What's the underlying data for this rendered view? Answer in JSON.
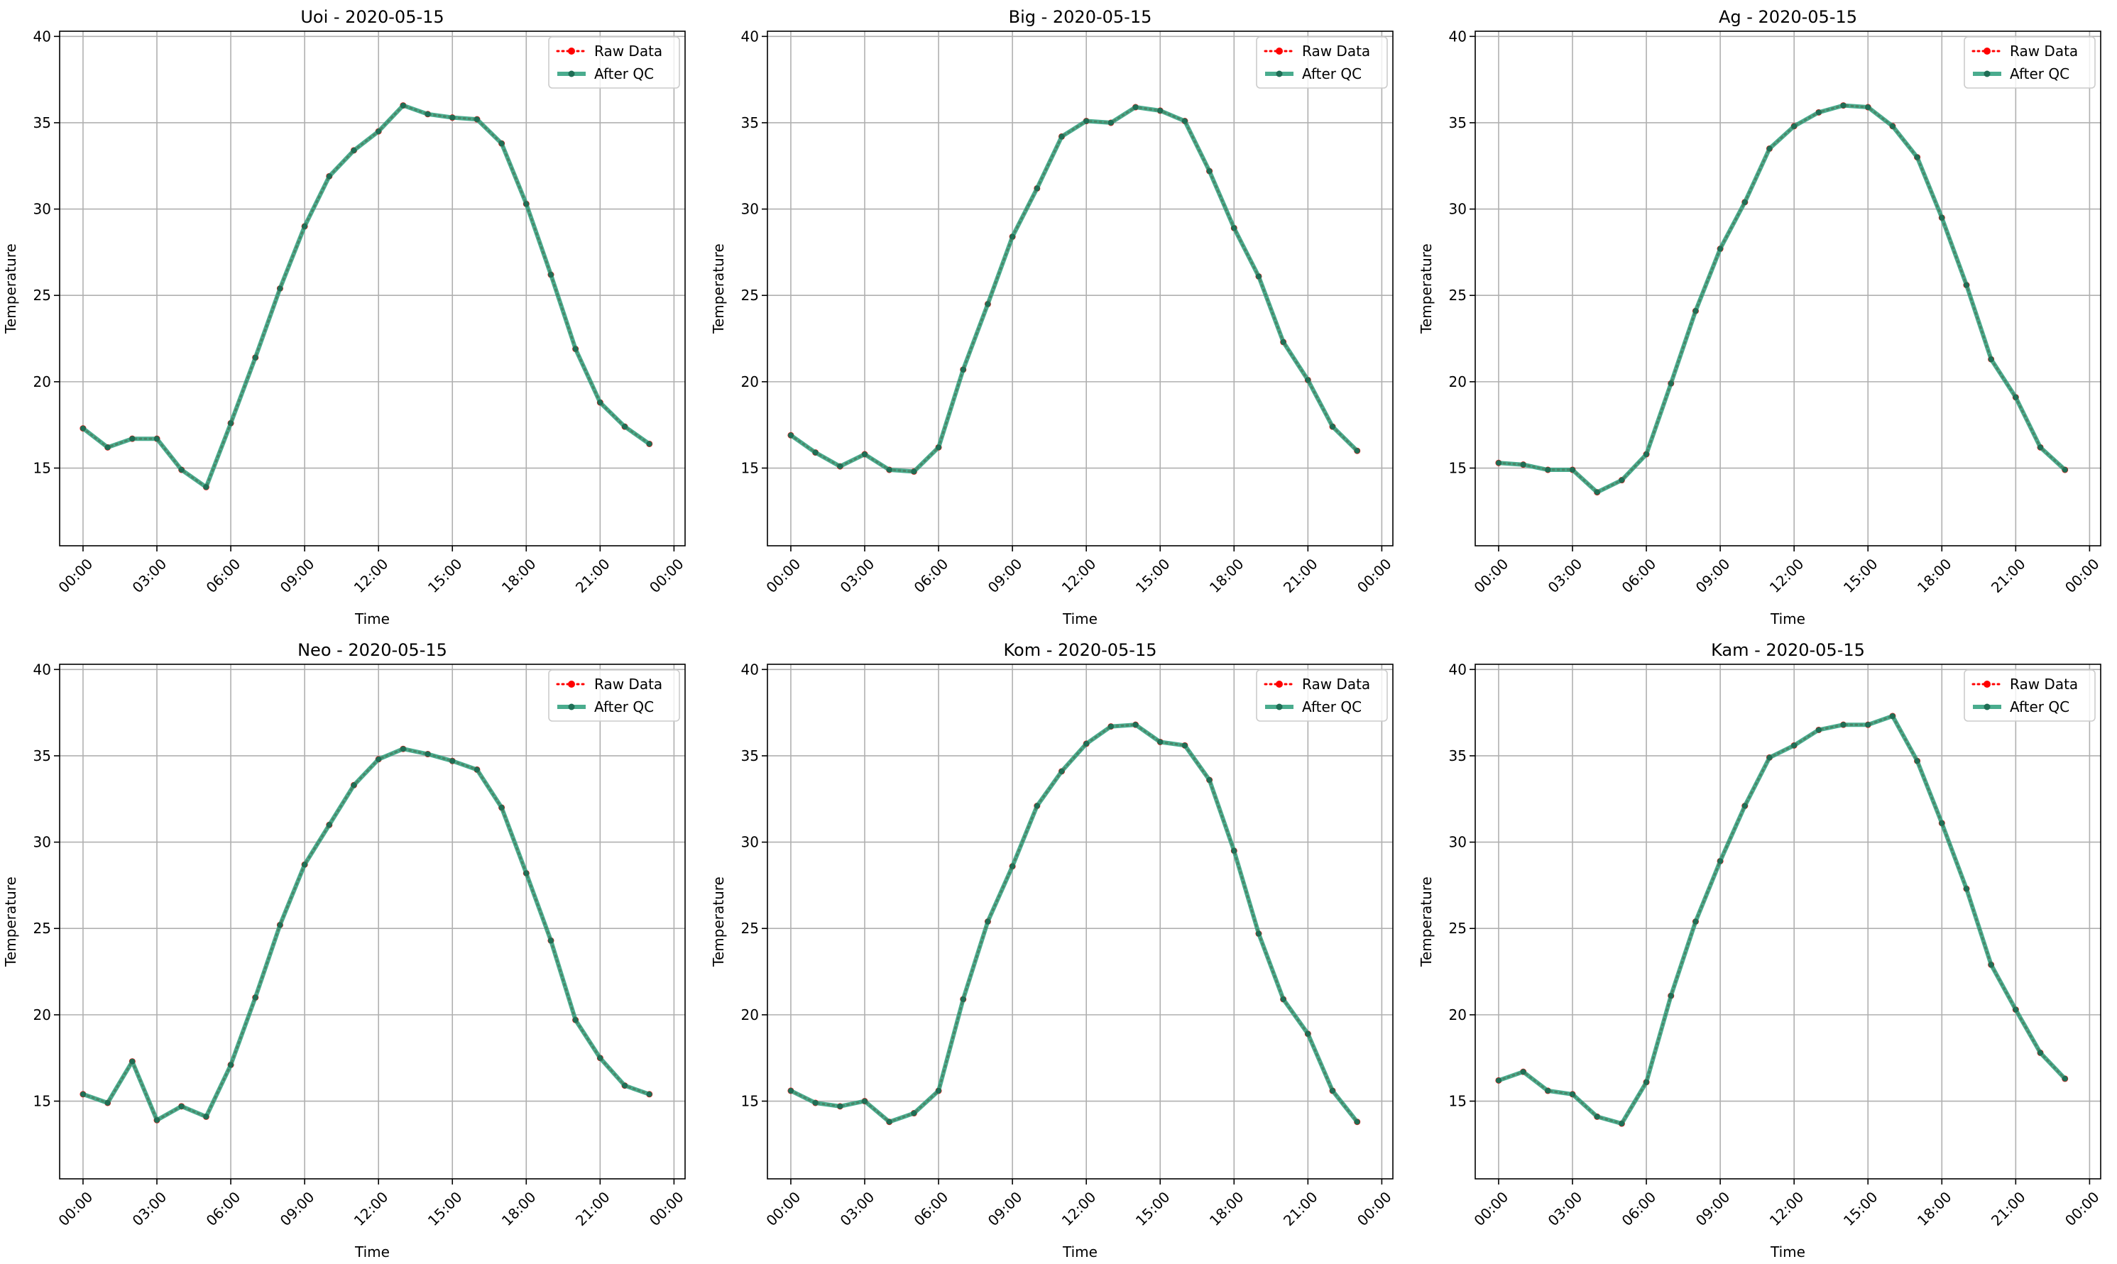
{
  "figure": {
    "background": "#ffffff"
  },
  "style": {
    "raw_color": "#ff0000",
    "qc_color": "#2a9d7a",
    "qc_marker_color": "#1f6e55"
  },
  "chart_data": [
    {
      "type": "line",
      "title": "Uoi - 2020-05-15",
      "xlabel": "Time",
      "ylabel": "Temperature",
      "x": [
        "00:00",
        "01:00",
        "02:00",
        "03:00",
        "04:00",
        "05:00",
        "06:00",
        "07:00",
        "08:00",
        "09:00",
        "10:00",
        "11:00",
        "12:00",
        "13:00",
        "14:00",
        "15:00",
        "16:00",
        "17:00",
        "18:00",
        "19:00",
        "20:00",
        "21:00",
        "22:00",
        "23:00"
      ],
      "xticks": [
        "00:00",
        "03:00",
        "06:00",
        "09:00",
        "12:00",
        "15:00",
        "18:00",
        "21:00",
        "00:00"
      ],
      "yticks": [
        15,
        20,
        25,
        30,
        35,
        40
      ],
      "ylim": [
        10.5,
        40.3
      ],
      "grid": true,
      "legend_position": "top-right",
      "series": [
        {
          "name": "Raw Data",
          "style": "dotted",
          "values": [
            17.3,
            16.2,
            16.7,
            16.7,
            14.9,
            13.9,
            17.6,
            21.4,
            25.4,
            29.0,
            31.9,
            33.4,
            34.5,
            36.0,
            35.5,
            35.3,
            35.2,
            33.8,
            30.3,
            26.2,
            21.9,
            18.8,
            17.4,
            16.4
          ]
        },
        {
          "name": "After QC",
          "style": "solid",
          "values": [
            17.3,
            16.2,
            16.7,
            16.7,
            14.9,
            13.9,
            17.6,
            21.4,
            25.4,
            29.0,
            31.9,
            33.4,
            34.5,
            36.0,
            35.5,
            35.3,
            35.2,
            33.8,
            30.3,
            26.2,
            21.9,
            18.8,
            17.4,
            16.4
          ]
        }
      ]
    },
    {
      "type": "line",
      "title": "Big - 2020-05-15",
      "xlabel": "Time",
      "ylabel": "Temperature",
      "x": [
        "00:00",
        "01:00",
        "02:00",
        "03:00",
        "04:00",
        "05:00",
        "06:00",
        "07:00",
        "08:00",
        "09:00",
        "10:00",
        "11:00",
        "12:00",
        "13:00",
        "14:00",
        "15:00",
        "16:00",
        "17:00",
        "18:00",
        "19:00",
        "20:00",
        "21:00",
        "22:00",
        "23:00"
      ],
      "xticks": [
        "00:00",
        "03:00",
        "06:00",
        "09:00",
        "12:00",
        "15:00",
        "18:00",
        "21:00",
        "00:00"
      ],
      "yticks": [
        15,
        20,
        25,
        30,
        35,
        40
      ],
      "ylim": [
        10.5,
        40.3
      ],
      "grid": true,
      "legend_position": "top-right",
      "series": [
        {
          "name": "Raw Data",
          "style": "dotted",
          "values": [
            16.9,
            15.9,
            15.1,
            15.8,
            14.9,
            14.8,
            16.2,
            20.7,
            24.5,
            28.4,
            31.2,
            34.2,
            35.1,
            35.0,
            35.9,
            35.7,
            35.1,
            32.2,
            28.9,
            26.1,
            22.3,
            20.1,
            17.4,
            16.0
          ]
        },
        {
          "name": "After QC",
          "style": "solid",
          "values": [
            16.9,
            15.9,
            15.1,
            15.8,
            14.9,
            14.8,
            16.2,
            20.7,
            24.5,
            28.4,
            31.2,
            34.2,
            35.1,
            35.0,
            35.9,
            35.7,
            35.1,
            32.2,
            28.9,
            26.1,
            22.3,
            20.1,
            17.4,
            16.0
          ]
        }
      ]
    },
    {
      "type": "line",
      "title": "Ag - 2020-05-15",
      "xlabel": "Time",
      "ylabel": "Temperature",
      "x": [
        "00:00",
        "01:00",
        "02:00",
        "03:00",
        "04:00",
        "05:00",
        "06:00",
        "07:00",
        "08:00",
        "09:00",
        "10:00",
        "11:00",
        "12:00",
        "13:00",
        "14:00",
        "15:00",
        "16:00",
        "17:00",
        "18:00",
        "19:00",
        "20:00",
        "21:00",
        "22:00",
        "23:00"
      ],
      "xticks": [
        "00:00",
        "03:00",
        "06:00",
        "09:00",
        "12:00",
        "15:00",
        "18:00",
        "21:00",
        "00:00"
      ],
      "yticks": [
        15,
        20,
        25,
        30,
        35,
        40
      ],
      "ylim": [
        10.5,
        40.3
      ],
      "grid": true,
      "legend_position": "top-right",
      "series": [
        {
          "name": "Raw Data",
          "style": "dotted",
          "values": [
            15.3,
            15.2,
            14.9,
            14.9,
            13.6,
            14.3,
            15.8,
            19.9,
            24.1,
            27.7,
            30.4,
            33.5,
            34.8,
            35.6,
            36.0,
            35.9,
            34.8,
            33.0,
            29.5,
            25.6,
            21.3,
            19.1,
            16.2,
            14.9
          ]
        },
        {
          "name": "After QC",
          "style": "solid",
          "values": [
            15.3,
            15.2,
            14.9,
            14.9,
            13.6,
            14.3,
            15.8,
            19.9,
            24.1,
            27.7,
            30.4,
            33.5,
            34.8,
            35.6,
            36.0,
            35.9,
            34.8,
            33.0,
            29.5,
            25.6,
            21.3,
            19.1,
            16.2,
            14.9
          ]
        }
      ]
    },
    {
      "type": "line",
      "title": "Neo - 2020-05-15",
      "xlabel": "Time",
      "ylabel": "Temperature",
      "x": [
        "00:00",
        "01:00",
        "02:00",
        "03:00",
        "04:00",
        "05:00",
        "06:00",
        "07:00",
        "08:00",
        "09:00",
        "10:00",
        "11:00",
        "12:00",
        "13:00",
        "14:00",
        "15:00",
        "16:00",
        "17:00",
        "18:00",
        "19:00",
        "20:00",
        "21:00",
        "22:00",
        "23:00"
      ],
      "xticks": [
        "00:00",
        "03:00",
        "06:00",
        "09:00",
        "12:00",
        "15:00",
        "18:00",
        "21:00",
        "00:00"
      ],
      "yticks": [
        15,
        20,
        25,
        30,
        35,
        40
      ],
      "ylim": [
        10.5,
        40.3
      ],
      "grid": true,
      "legend_position": "top-right",
      "series": [
        {
          "name": "Raw Data",
          "style": "dotted",
          "values": [
            15.4,
            14.9,
            17.3,
            13.9,
            14.7,
            14.1,
            17.1,
            21.0,
            25.2,
            28.7,
            31.0,
            33.3,
            34.8,
            35.4,
            35.1,
            34.7,
            34.2,
            32.0,
            28.2,
            24.3,
            19.7,
            17.5,
            15.9,
            15.4
          ]
        },
        {
          "name": "After QC",
          "style": "solid",
          "values": [
            15.4,
            14.9,
            17.3,
            13.9,
            14.7,
            14.1,
            17.1,
            21.0,
            25.2,
            28.7,
            31.0,
            33.3,
            34.8,
            35.4,
            35.1,
            34.7,
            34.2,
            32.0,
            28.2,
            24.3,
            19.7,
            17.5,
            15.9,
            15.4
          ]
        }
      ]
    },
    {
      "type": "line",
      "title": "Kom - 2020-05-15",
      "xlabel": "Time",
      "ylabel": "Temperature",
      "x": [
        "00:00",
        "01:00",
        "02:00",
        "03:00",
        "04:00",
        "05:00",
        "06:00",
        "07:00",
        "08:00",
        "09:00",
        "10:00",
        "11:00",
        "12:00",
        "13:00",
        "14:00",
        "15:00",
        "16:00",
        "17:00",
        "18:00",
        "19:00",
        "20:00",
        "21:00",
        "22:00",
        "23:00"
      ],
      "xticks": [
        "00:00",
        "03:00",
        "06:00",
        "09:00",
        "12:00",
        "15:00",
        "18:00",
        "21:00",
        "00:00"
      ],
      "yticks": [
        15,
        20,
        25,
        30,
        35,
        40
      ],
      "ylim": [
        10.5,
        40.3
      ],
      "grid": true,
      "legend_position": "top-right",
      "series": [
        {
          "name": "Raw Data",
          "style": "dotted",
          "values": [
            15.6,
            14.9,
            14.7,
            15.0,
            13.8,
            14.3,
            15.6,
            20.9,
            25.4,
            28.6,
            32.1,
            34.1,
            35.7,
            36.7,
            36.8,
            35.8,
            35.6,
            33.6,
            29.5,
            24.7,
            20.9,
            18.9,
            15.6,
            13.8
          ]
        },
        {
          "name": "After QC",
          "style": "solid",
          "values": [
            15.6,
            14.9,
            14.7,
            15.0,
            13.8,
            14.3,
            15.6,
            20.9,
            25.4,
            28.6,
            32.1,
            34.1,
            35.7,
            36.7,
            36.8,
            35.8,
            35.6,
            33.6,
            29.5,
            24.7,
            20.9,
            18.9,
            15.6,
            13.8
          ]
        }
      ]
    },
    {
      "type": "line",
      "title": "Kam - 2020-05-15",
      "xlabel": "Time",
      "ylabel": "Temperature",
      "x": [
        "00:00",
        "01:00",
        "02:00",
        "03:00",
        "04:00",
        "05:00",
        "06:00",
        "07:00",
        "08:00",
        "09:00",
        "10:00",
        "11:00",
        "12:00",
        "13:00",
        "14:00",
        "15:00",
        "16:00",
        "17:00",
        "18:00",
        "19:00",
        "20:00",
        "21:00",
        "22:00",
        "23:00"
      ],
      "xticks": [
        "00:00",
        "03:00",
        "06:00",
        "09:00",
        "12:00",
        "15:00",
        "18:00",
        "21:00",
        "00:00"
      ],
      "yticks": [
        15,
        20,
        25,
        30,
        35,
        40
      ],
      "ylim": [
        10.5,
        40.3
      ],
      "grid": true,
      "legend_position": "top-right",
      "series": [
        {
          "name": "Raw Data",
          "style": "dotted",
          "values": [
            16.2,
            16.7,
            15.6,
            15.4,
            14.1,
            13.7,
            16.1,
            21.1,
            25.4,
            28.9,
            32.1,
            34.9,
            35.6,
            36.5,
            36.8,
            36.8,
            37.3,
            34.7,
            31.1,
            27.3,
            22.9,
            20.3,
            17.8,
            16.3
          ]
        },
        {
          "name": "After QC",
          "style": "solid",
          "values": [
            16.2,
            16.7,
            15.6,
            15.4,
            14.1,
            13.7,
            16.1,
            21.1,
            25.4,
            28.9,
            32.1,
            34.9,
            35.6,
            36.5,
            36.8,
            36.8,
            37.3,
            34.7,
            31.1,
            27.3,
            22.9,
            20.3,
            17.8,
            16.3
          ]
        }
      ]
    }
  ]
}
